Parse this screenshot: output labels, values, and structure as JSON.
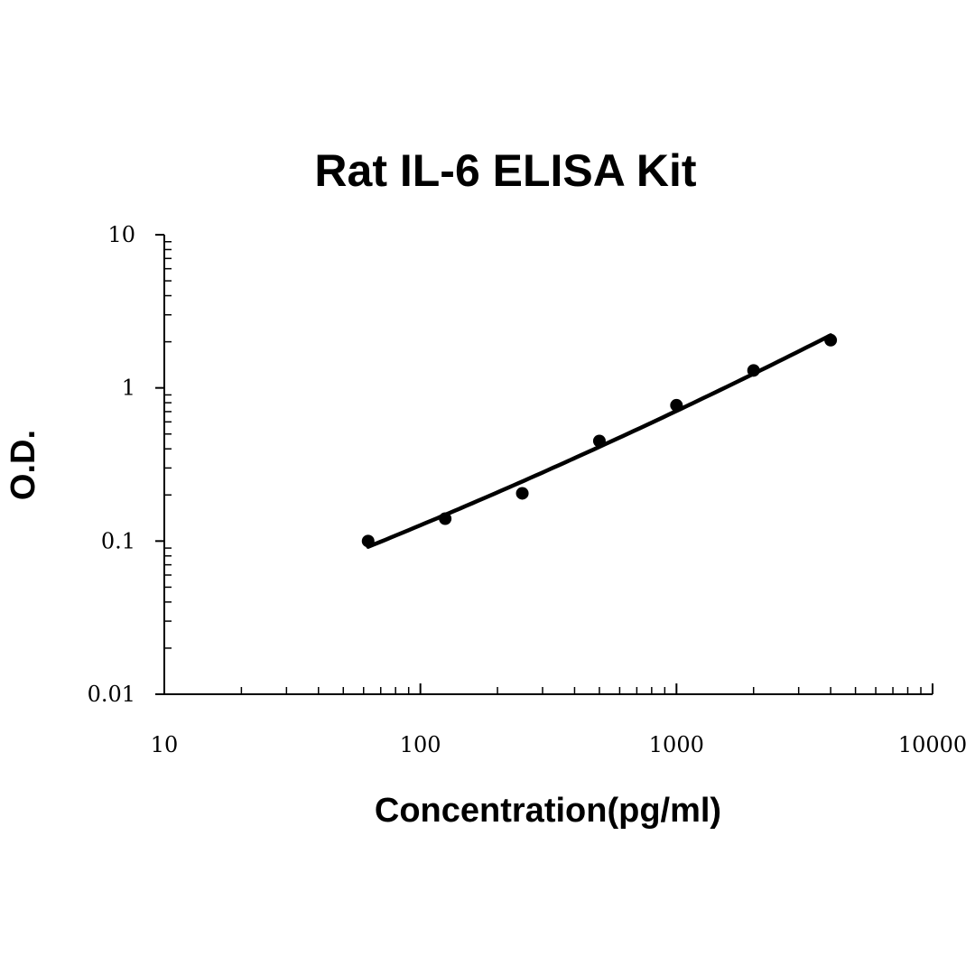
{
  "chart_data": {
    "type": "scatter",
    "title": "Rat IL-6 ELISA Kit",
    "xlabel": "Concentration(pg/ml)",
    "ylabel": "O.D.",
    "xscale": "log",
    "yscale": "log",
    "xlim": [
      10,
      10000
    ],
    "ylim": [
      0.01,
      10
    ],
    "x_tick_labels": [
      "10",
      "100",
      "1000",
      "10000"
    ],
    "y_tick_labels": [
      "0.01",
      "0.1",
      "1",
      "10"
    ],
    "grid": false,
    "legend": "none",
    "series": [
      {
        "x": [
          62.5,
          125,
          250,
          500,
          1000,
          2000,
          4000
        ],
        "y": [
          0.1,
          0.14,
          0.205,
          0.45,
          0.77,
          1.3,
          2.05
        ],
        "marker": "circle",
        "trendline": true,
        "color": "#000000"
      }
    ]
  }
}
